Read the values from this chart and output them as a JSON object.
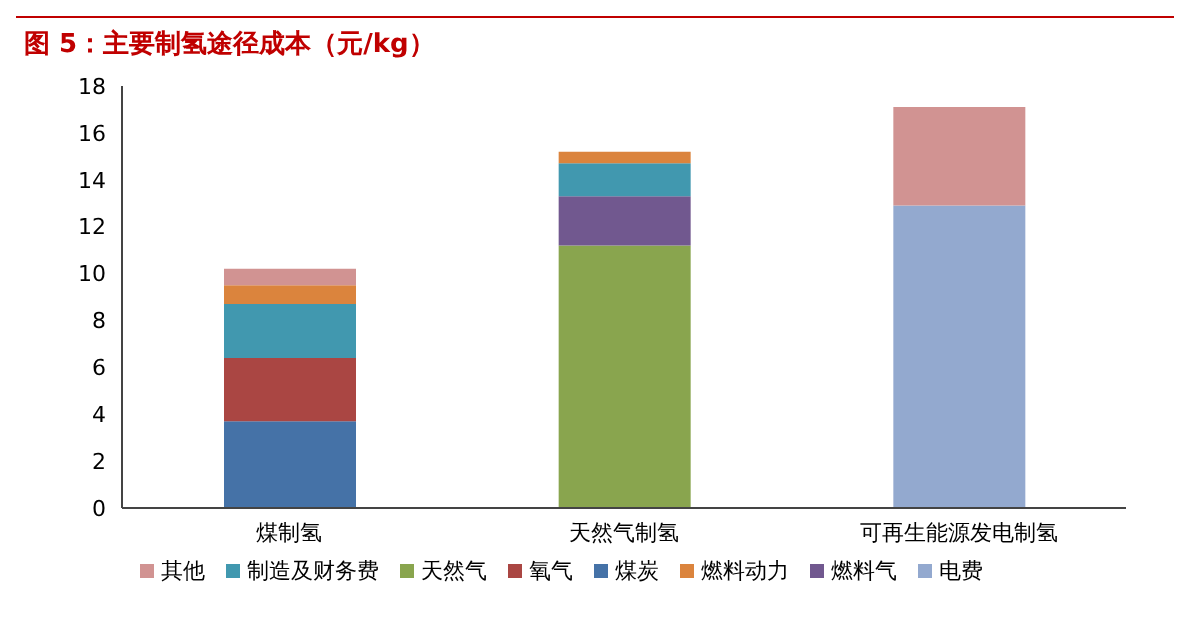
{
  "chart_data": {
    "type": "bar",
    "title": "图 5：主要制氢途径成本（元/kg）",
    "categories": [
      "煤制氢",
      "天然气制氢",
      "可再生能源发电制氢"
    ],
    "stacked": true,
    "ylim": [
      0,
      18
    ],
    "yticks": [
      0,
      2,
      4,
      6,
      8,
      10,
      12,
      14,
      16,
      18
    ],
    "grid": false,
    "legend": "bottom",
    "series": [
      {
        "name": "煤炭",
        "color": "#4572a7",
        "values": [
          3.7,
          null,
          null
        ]
      },
      {
        "name": "氧气",
        "color": "#aa4643",
        "values": [
          2.7,
          null,
          null
        ]
      },
      {
        "name": "天然气",
        "color": "#89a54e",
        "values": [
          null,
          11.2,
          null
        ]
      },
      {
        "name": "燃料气",
        "color": "#71588f",
        "values": [
          null,
          2.1,
          null
        ]
      },
      {
        "name": "制造及财务费",
        "color": "#4198af",
        "values": [
          2.3,
          1.4,
          null
        ]
      },
      {
        "name": "燃料动力",
        "color": "#db843d",
        "values": [
          0.8,
          0.5,
          null
        ]
      },
      {
        "name": "电费",
        "color": "#93a9cf",
        "values": [
          null,
          null,
          12.9
        ]
      },
      {
        "name": "其他",
        "color": "#d19392",
        "values": [
          0.7,
          null,
          4.2
        ]
      }
    ]
  }
}
